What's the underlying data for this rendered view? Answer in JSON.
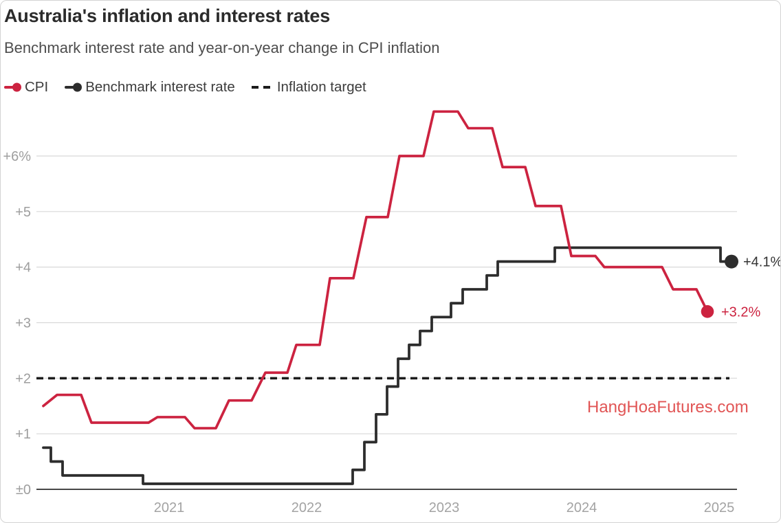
{
  "header": {
    "title": "Australia's inflation and interest rates",
    "subtitle": "Benchmark interest rate and year-on-year change in CPI inflation"
  },
  "legend": {
    "items": [
      {
        "label": "CPI",
        "color": "#cc2340",
        "swatch": "line-dot"
      },
      {
        "label": "Benchmark interest rate",
        "color": "#2d2d2d",
        "swatch": "line-dot"
      },
      {
        "label": "Inflation target",
        "color": "#1c1c1c",
        "swatch": "dashes"
      }
    ]
  },
  "watermark": {
    "text": "HangHoaFutures.com",
    "color": "#e15555"
  },
  "chart_data": {
    "type": "line",
    "title": "Australia's inflation and interest rates",
    "subtitle": "Benchmark interest rate and year-on-year change in CPI inflation",
    "x_axis": {
      "range": [
        2020.035,
        2025.125
      ],
      "ticks": [
        2021,
        2022,
        2023,
        2024,
        2025
      ],
      "tick_labels": [
        "2021",
        "2022",
        "2023",
        "2024",
        "2025"
      ]
    },
    "y_axis": {
      "range": [
        0,
        6.94
      ],
      "ticks": [
        0,
        1,
        2,
        3,
        4,
        5,
        6
      ],
      "tick_labels": [
        "±0",
        "+1",
        "+2",
        "+3",
        "+4",
        "+5",
        "+6%"
      ],
      "unit": "percent"
    },
    "grid": "horizontal",
    "legend_position": "top-left",
    "reference_line": {
      "name": "Inflation target",
      "value": 2,
      "style": "dashed",
      "color": "#1c1c1c"
    },
    "series": [
      {
        "name": "Benchmark interest rate",
        "color": "#2d2d2d",
        "style": "step-after",
        "end_label": "+4.1%",
        "end_value": 4.1,
        "end_t": 2025.09,
        "steps": [
          [
            2020.085,
            0.75
          ],
          [
            2020.14,
            0.5
          ],
          [
            2020.225,
            0.25
          ],
          [
            2020.81,
            0.1
          ],
          [
            2022.335,
            0.35
          ],
          [
            2022.42,
            0.85
          ],
          [
            2022.505,
            1.35
          ],
          [
            2022.585,
            1.85
          ],
          [
            2022.665,
            2.35
          ],
          [
            2022.745,
            2.6
          ],
          [
            2022.825,
            2.85
          ],
          [
            2022.91,
            3.1
          ],
          [
            2023.05,
            3.35
          ],
          [
            2023.135,
            3.6
          ],
          [
            2023.31,
            3.85
          ],
          [
            2023.39,
            4.1
          ],
          [
            2023.805,
            4.35
          ],
          [
            2025.01,
            4.1
          ]
        ]
      },
      {
        "name": "CPI",
        "color": "#cc2340",
        "style": "line",
        "end_label": "+3.2%",
        "end_value": 3.2,
        "points": [
          [
            2020.085,
            1.5
          ],
          [
            2020.185,
            1.7
          ],
          [
            2020.36,
            1.7
          ],
          [
            2020.435,
            1.2
          ],
          [
            2020.85,
            1.2
          ],
          [
            2020.915,
            1.3
          ],
          [
            2021.115,
            1.3
          ],
          [
            2021.185,
            1.1
          ],
          [
            2021.34,
            1.1
          ],
          [
            2021.435,
            1.6
          ],
          [
            2021.6,
            1.6
          ],
          [
            2021.7,
            2.1
          ],
          [
            2021.86,
            2.1
          ],
          [
            2021.925,
            2.6
          ],
          [
            2022.095,
            2.6
          ],
          [
            2022.17,
            3.8
          ],
          [
            2022.34,
            3.8
          ],
          [
            2022.435,
            4.9
          ],
          [
            2022.59,
            4.9
          ],
          [
            2022.675,
            6.0
          ],
          [
            2022.85,
            6.0
          ],
          [
            2022.925,
            6.8
          ],
          [
            2023.1,
            6.8
          ],
          [
            2023.175,
            6.5
          ],
          [
            2023.35,
            6.5
          ],
          [
            2023.425,
            5.8
          ],
          [
            2023.59,
            5.8
          ],
          [
            2023.665,
            5.1
          ],
          [
            2023.85,
            5.1
          ],
          [
            2023.925,
            4.2
          ],
          [
            2024.1,
            4.2
          ],
          [
            2024.165,
            4.0
          ],
          [
            2024.585,
            4.0
          ],
          [
            2024.665,
            3.6
          ],
          [
            2024.835,
            3.6
          ],
          [
            2024.915,
            3.2
          ]
        ]
      }
    ]
  }
}
